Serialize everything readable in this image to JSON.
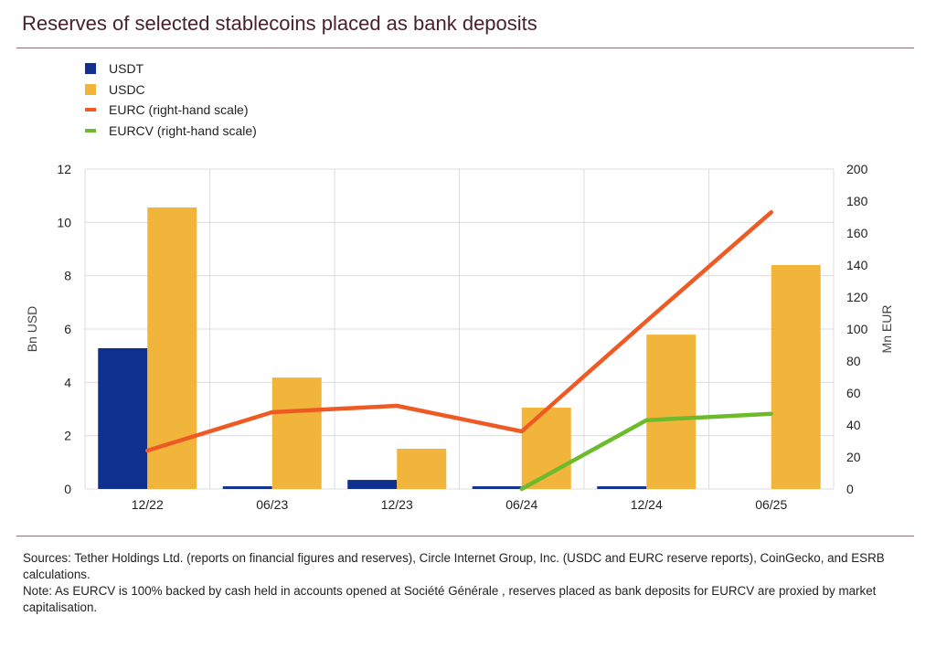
{
  "title": "Reserves of selected stablecoins placed as bank deposits",
  "chart_data": {
    "type": "bar",
    "title": "Reserves of selected stablecoins placed as bank deposits",
    "categories": [
      "12/22",
      "06/23",
      "12/23",
      "06/24",
      "12/24",
      "06/25"
    ],
    "ylabel": "Bn USD",
    "ylim": [
      0,
      12
    ],
    "yticks": [
      0,
      2,
      4,
      6,
      8,
      10,
      12
    ],
    "y2label": "Mn EUR",
    "y2lim": [
      0,
      200
    ],
    "y2ticks": [
      0,
      20,
      40,
      60,
      80,
      100,
      120,
      140,
      160,
      180,
      200
    ],
    "grid": true,
    "legend_position": "top-left",
    "series": [
      {
        "name": "USDT",
        "type": "bar",
        "axis": "left",
        "color": "#10308f",
        "values": [
          5.28,
          0.1,
          0.34,
          0.1,
          0.1,
          0
        ]
      },
      {
        "name": "USDC",
        "type": "bar",
        "axis": "left",
        "color": "#f2b53b",
        "values": [
          10.56,
          4.18,
          1.51,
          3.05,
          5.79,
          8.4
        ]
      },
      {
        "name": "EURC (right-hand scale)",
        "type": "line",
        "axis": "right",
        "color": "#ee5a24",
        "values": [
          24,
          48,
          52,
          36,
          105,
          173
        ]
      },
      {
        "name": "EURCV (right-hand scale)",
        "type": "line",
        "axis": "right",
        "color": "#6dbb2d",
        "values": [
          null,
          null,
          null,
          0,
          43,
          47
        ]
      }
    ]
  },
  "notes": {
    "sources": "Sources: Tether Holdings Ltd. (reports on financial figures and reserves), Circle Internet Group, Inc. (USDC and EURC reserve reports), CoinGecko, and ESRB calculations.",
    "note": "Note: As EURCV is 100% backed by cash held in accounts opened at Société Générale , reserves placed as bank deposits for EURCV are proxied by market capitalisation."
  }
}
